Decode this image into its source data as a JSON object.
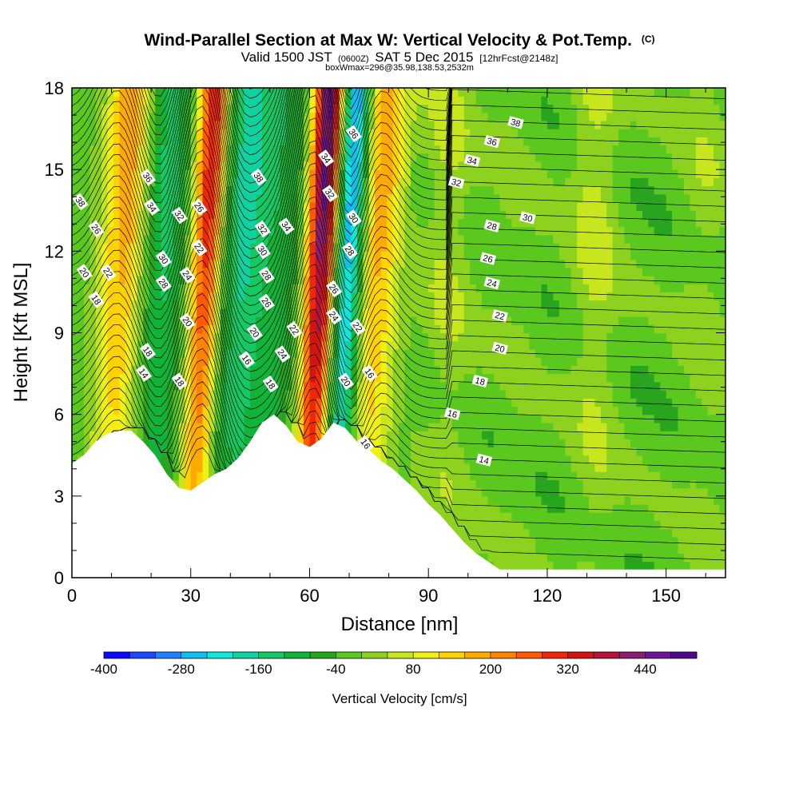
{
  "chart_data": {
    "type": "heatmap",
    "title_main": "Wind-Parallel Section at Max W: Vertical Velocity & Pot.Temp.",
    "title_tag": "(C)",
    "subtitle_valid": "Valid 1500 JST",
    "subtitle_zulu": "(0600Z)",
    "subtitle_date": "SAT 5 Dec 2015",
    "subtitle_fcst": "[12hrFcst@2148z]",
    "subtitle_box": "boxWmax=296@35.98,138.53,2532m",
    "xlabel": "Distance [nm]",
    "ylabel": "Height [Kft MSL]",
    "xlim": [
      0,
      165
    ],
    "ylim": [
      0,
      18
    ],
    "x_ticks": [
      "0",
      "30",
      "60",
      "90",
      "120",
      "150"
    ],
    "y_ticks": [
      "0",
      "3",
      "6",
      "9",
      "12",
      "15",
      "18"
    ],
    "colorbar": {
      "label": "Vertical Velocity [cm/s]",
      "ticks": [
        "-400",
        "-280",
        "-160",
        "-40",
        "80",
        "200",
        "320",
        "440"
      ],
      "colors": [
        "#0a0aff",
        "#1e46ff",
        "#1e82ff",
        "#10bef0",
        "#10e6dc",
        "#10d2a0",
        "#14c864",
        "#10b438",
        "#28a51e",
        "#5ac81e",
        "#8cd21e",
        "#c8e61e",
        "#f0f014",
        "#ffd200",
        "#ffaa00",
        "#ff8200",
        "#ff5a00",
        "#f0280a",
        "#d21414",
        "#b4143c",
        "#8c1e6e",
        "#6e1496",
        "#500a8c"
      ]
    },
    "velocity_bands": [
      {
        "x": 12,
        "w": 200
      },
      {
        "x": 22,
        "w": -120
      },
      {
        "x": 33,
        "w": 330
      },
      {
        "x": 42,
        "w": -150
      },
      {
        "x": 52,
        "w": -80
      },
      {
        "x": 62,
        "w": 460
      },
      {
        "x": 69,
        "w": -300
      },
      {
        "x": 76,
        "w": 200
      },
      {
        "x": 95,
        "w": 60
      },
      {
        "x": 112,
        "w": 20
      },
      {
        "x": 132,
        "w": 70
      },
      {
        "x": 160,
        "w": 40
      }
    ],
    "theta_levels": [
      14,
      16,
      18,
      20,
      22,
      24,
      26,
      28,
      30,
      32,
      34,
      36,
      38
    ],
    "terrain": [
      [
        0,
        4.2
      ],
      [
        3,
        4.5
      ],
      [
        6,
        5.0
      ],
      [
        9,
        5.3
      ],
      [
        12,
        5.4
      ],
      [
        15,
        5.4
      ],
      [
        18,
        5.0
      ],
      [
        21,
        4.5
      ],
      [
        24,
        3.8
      ],
      [
        27,
        3.3
      ],
      [
        30,
        3.2
      ],
      [
        33,
        3.5
      ],
      [
        36,
        3.8
      ],
      [
        39,
        4.0
      ],
      [
        42,
        4.4
      ],
      [
        45,
        5.0
      ],
      [
        48,
        5.7
      ],
      [
        51,
        6.0
      ],
      [
        54,
        5.6
      ],
      [
        57,
        5.0
      ],
      [
        60,
        4.8
      ],
      [
        63,
        5.1
      ],
      [
        66,
        5.7
      ],
      [
        69,
        5.5
      ],
      [
        72,
        5.0
      ],
      [
        75,
        4.7
      ],
      [
        78,
        4.3
      ],
      [
        81,
        4.0
      ],
      [
        84,
        3.6
      ],
      [
        87,
        3.2
      ],
      [
        90,
        2.7
      ],
      [
        93,
        2.3
      ],
      [
        96,
        1.8
      ],
      [
        99,
        1.3
      ],
      [
        102,
        0.9
      ],
      [
        105,
        0.6
      ],
      [
        108,
        0.3
      ],
      [
        111,
        0.3
      ],
      [
        165,
        0.3
      ]
    ],
    "contour_labels": [
      {
        "t": "38",
        "x": 2,
        "y": 13.8
      },
      {
        "t": "26",
        "x": 6,
        "y": 12.8
      },
      {
        "t": "22",
        "x": 9,
        "y": 11.2
      },
      {
        "t": "20",
        "x": 3,
        "y": 11.2
      },
      {
        "t": "18",
        "x": 6,
        "y": 10.2
      },
      {
        "t": "36",
        "x": 19,
        "y": 14.7
      },
      {
        "t": "34",
        "x": 20,
        "y": 13.6
      },
      {
        "t": "30",
        "x": 23,
        "y": 11.7
      },
      {
        "t": "28",
        "x": 23,
        "y": 10.8
      },
      {
        "t": "18",
        "x": 19,
        "y": 8.3
      },
      {
        "t": "14",
        "x": 18,
        "y": 7.5
      },
      {
        "t": "32",
        "x": 27,
        "y": 13.3
      },
      {
        "t": "26",
        "x": 32,
        "y": 13.6
      },
      {
        "t": "22",
        "x": 32,
        "y": 12.1
      },
      {
        "t": "24",
        "x": 29,
        "y": 11.1
      },
      {
        "t": "20",
        "x": 29,
        "y": 9.4
      },
      {
        "t": "18",
        "x": 27,
        "y": 7.2
      },
      {
        "t": "38",
        "x": 47,
        "y": 14.7
      },
      {
        "t": "32",
        "x": 48,
        "y": 12.8
      },
      {
        "t": "30",
        "x": 48,
        "y": 12.0
      },
      {
        "t": "28",
        "x": 49,
        "y": 11.1
      },
      {
        "t": "26",
        "x": 49,
        "y": 10.1
      },
      {
        "t": "20",
        "x": 46,
        "y": 9.0
      },
      {
        "t": "16",
        "x": 44,
        "y": 8.0
      },
      {
        "t": "18",
        "x": 50,
        "y": 7.1
      },
      {
        "t": "34",
        "x": 54,
        "y": 12.9
      },
      {
        "t": "24",
        "x": 53,
        "y": 8.2
      },
      {
        "t": "22",
        "x": 56,
        "y": 9.1
      },
      {
        "t": "34",
        "x": 64,
        "y": 15.4
      },
      {
        "t": "32",
        "x": 65,
        "y": 14.1
      },
      {
        "t": "36",
        "x": 71,
        "y": 16.3
      },
      {
        "t": "30",
        "x": 71,
        "y": 13.2
      },
      {
        "t": "28",
        "x": 70,
        "y": 12.0
      },
      {
        "t": "26",
        "x": 66,
        "y": 10.6
      },
      {
        "t": "24",
        "x": 66,
        "y": 9.6
      },
      {
        "t": "22",
        "x": 72,
        "y": 9.2
      },
      {
        "t": "20",
        "x": 69,
        "y": 7.2
      },
      {
        "t": "16",
        "x": 75,
        "y": 7.5
      },
      {
        "t": "16",
        "x": 74,
        "y": 4.9
      },
      {
        "t": "38",
        "x": 112,
        "y": 16.7
      },
      {
        "t": "36",
        "x": 106,
        "y": 16.0
      },
      {
        "t": "34",
        "x": 101,
        "y": 15.3
      },
      {
        "t": "32",
        "x": 97,
        "y": 14.5
      },
      {
        "t": "30",
        "x": 115,
        "y": 13.2
      },
      {
        "t": "28",
        "x": 106,
        "y": 12.9
      },
      {
        "t": "26",
        "x": 105,
        "y": 11.7
      },
      {
        "t": "24",
        "x": 106,
        "y": 10.8
      },
      {
        "t": "22",
        "x": 108,
        "y": 9.6
      },
      {
        "t": "20",
        "x": 108,
        "y": 8.4
      },
      {
        "t": "18",
        "x": 103,
        "y": 7.2
      },
      {
        "t": "16",
        "x": 96,
        "y": 6.0
      },
      {
        "t": "14",
        "x": 104,
        "y": 4.3
      }
    ]
  }
}
